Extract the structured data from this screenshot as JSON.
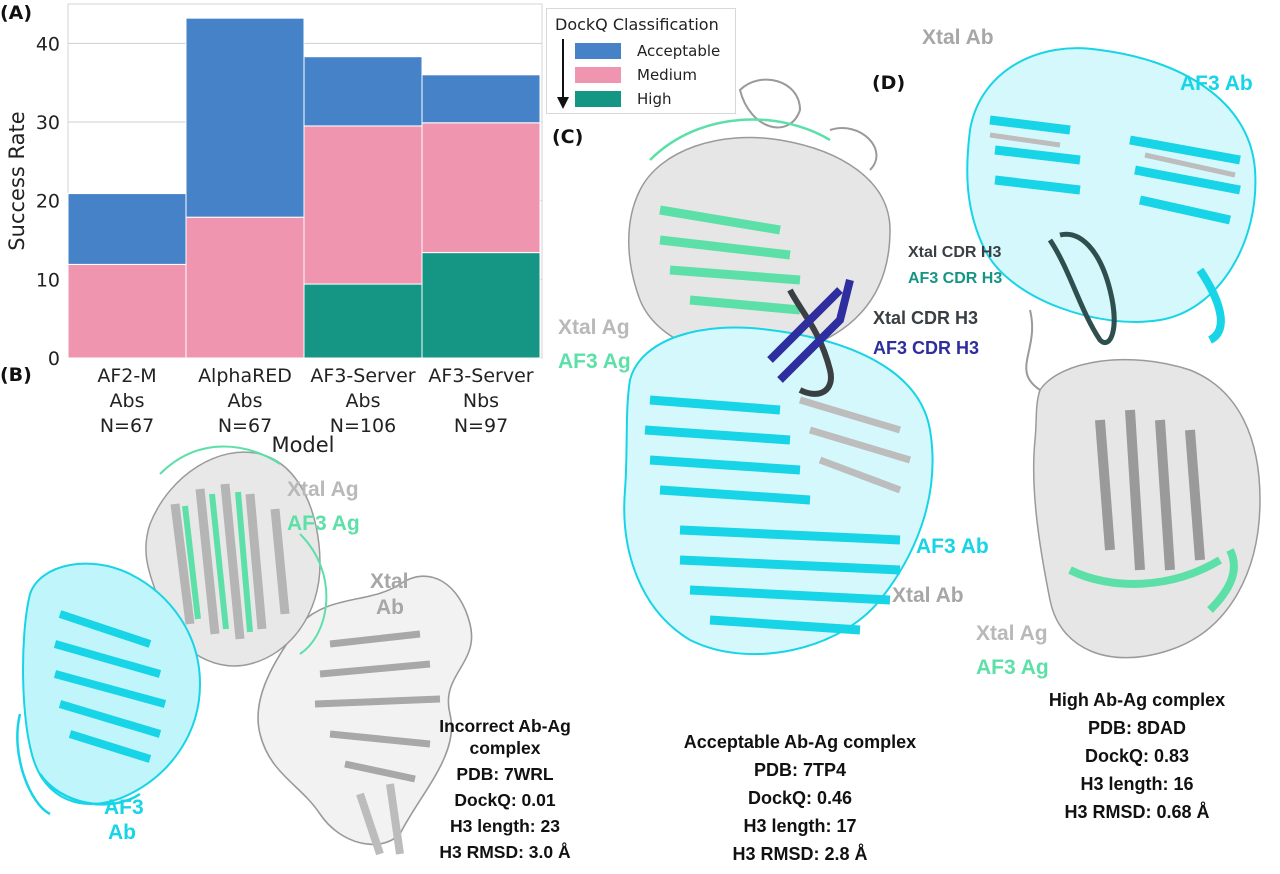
{
  "panels": {
    "A": "(A)",
    "B": "(B)",
    "C": "(C)",
    "D": "(D)"
  },
  "colors": {
    "acceptable": "#4682c8",
    "medium": "#f095b0",
    "high": "#159584",
    "xtal": "#b9b9b9",
    "af3_ab": "#17d4e6",
    "af3_ag": "#5de0a8",
    "xtal_cdr": "#3a3f44",
    "af3_cdr": "#2e2e9e",
    "af3_cdr_teal": "#159584"
  },
  "chart_data": {
    "type": "bar",
    "stacked": true,
    "categories": [
      "AF2-M\nAbs\nN=67",
      "AlphaRED\nAbs\nN=67",
      "AF3-Server\nAbs\nN=106",
      "AF3-Server\nNbs\nN=97"
    ],
    "category_lines": [
      [
        "AF2-M",
        "Abs",
        "N=67"
      ],
      [
        "AlphaRED",
        "Abs",
        "N=67"
      ],
      [
        "AF3-Server",
        "Abs",
        "N=106"
      ],
      [
        "AF3-Server",
        "Nbs",
        "N=97"
      ]
    ],
    "series": [
      {
        "name": "High",
        "color": "#159584",
        "values": [
          0,
          0,
          9.4,
          13.4
        ]
      },
      {
        "name": "Medium",
        "color": "#f095b0",
        "values": [
          11.9,
          17.9,
          20.1,
          16.5
        ]
      },
      {
        "name": "Acceptable",
        "color": "#4682c8",
        "values": [
          9.0,
          25.3,
          8.8,
          6.1
        ]
      }
    ],
    "totals": [
      20.9,
      43.2,
      38.3,
      36.0
    ],
    "xlabel": "Model",
    "ylabel": "Success Rate",
    "ylim": [
      0,
      45
    ],
    "yticks": [
      0,
      10,
      20,
      30,
      40
    ],
    "grid": "horizontal",
    "legend": {
      "title": "DockQ Classification",
      "placement": "top-right",
      "entries": [
        "Acceptable",
        "Medium",
        "High"
      ]
    }
  },
  "labels": {
    "b_xtal_ag": "Xtal Ag",
    "b_af3_ag": "AF3 Ag",
    "b_xtal_ab_1": "Xtal",
    "b_xtal_ab_2": "Ab",
    "b_af3_ab_1": "AF3",
    "b_af3_ab_2": "Ab",
    "c_xtal_ag": "Xtal Ag",
    "c_af3_ag": "AF3 Ag",
    "c_xtal_cdr": "Xtal CDR H3",
    "c_af3_cdr": "AF3 CDR H3",
    "c_af3_ab": "AF3 Ab",
    "c_xtal_ab": "Xtal Ab",
    "d_xtal_ab": "Xtal Ab",
    "d_af3_ab": "AF3 Ab",
    "d_xtal_cdr": "Xtal CDR H3",
    "d_af3_cdr": "AF3 CDR H3",
    "d_xtal_ag": "Xtal Ag",
    "d_af3_ag": "AF3 Ag"
  },
  "info_b": {
    "title1": "Incorrect Ab-Ag",
    "title2": "complex",
    "pdb": "PDB: 7WRL",
    "dockq": "DockQ: 0.01",
    "h3len": "H3 length: 23",
    "h3rmsd": "H3 RMSD: 3.0 Å"
  },
  "info_c": {
    "title": "Acceptable Ab-Ag complex",
    "pdb": "PDB: 7TP4",
    "dockq": "DockQ: 0.46",
    "h3len": "H3 length: 17",
    "h3rmsd": "H3 RMSD: 2.8 Å"
  },
  "info_d": {
    "title": "High Ab-Ag complex",
    "pdb": "PDB: 8DAD",
    "dockq": "DockQ: 0.83",
    "h3len": "H3 length: 16",
    "h3rmsd": "H3 RMSD: 0.68 Å"
  }
}
